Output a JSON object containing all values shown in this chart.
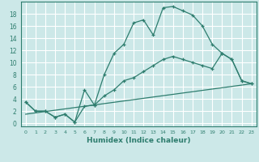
{
  "xlabel": "Humidex (Indice chaleur)",
  "bg_color": "#cce8e8",
  "grid_color": "#ffffff",
  "line_color": "#2e7d6e",
  "xlim": [
    -0.5,
    23.5
  ],
  "ylim": [
    -0.5,
    20.0
  ],
  "xticks": [
    0,
    1,
    2,
    3,
    4,
    5,
    6,
    7,
    8,
    9,
    10,
    11,
    12,
    13,
    14,
    15,
    16,
    17,
    18,
    19,
    20,
    21,
    22,
    23
  ],
  "yticks": [
    0,
    2,
    4,
    6,
    8,
    10,
    12,
    14,
    16,
    18
  ],
  "line1_x": [
    0,
    1,
    2,
    3,
    4,
    5,
    6,
    7,
    8,
    9,
    10,
    11,
    12,
    13,
    14,
    15,
    16,
    17,
    18,
    19,
    20,
    21,
    22,
    23
  ],
  "line1_y": [
    3.5,
    2.0,
    2.0,
    1.0,
    1.5,
    0.2,
    5.5,
    3.0,
    8.0,
    11.5,
    13.0,
    16.5,
    17.0,
    14.5,
    19.0,
    19.2,
    18.5,
    17.8,
    16.0,
    13.0,
    11.5,
    10.5,
    7.0,
    6.5
  ],
  "line2_x": [
    0,
    1,
    2,
    3,
    4,
    5,
    6,
    7,
    8,
    9,
    10,
    11,
    12,
    13,
    14,
    15,
    16,
    17,
    18,
    19,
    20,
    21,
    22,
    23
  ],
  "line2_y": [
    3.5,
    2.0,
    2.0,
    1.0,
    1.5,
    0.2,
    2.8,
    3.0,
    4.5,
    5.5,
    7.0,
    7.5,
    8.5,
    9.5,
    10.5,
    11.0,
    10.5,
    10.0,
    9.5,
    9.0,
    11.5,
    10.5,
    7.0,
    6.5
  ],
  "line3_x": [
    0,
    23
  ],
  "line3_y": [
    1.5,
    6.5
  ]
}
